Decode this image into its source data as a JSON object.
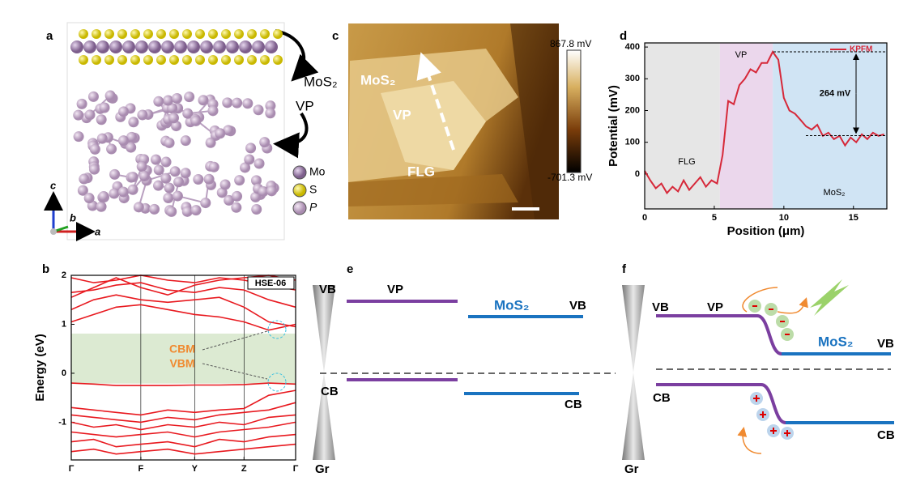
{
  "panel_a": {
    "label": "a",
    "layer_labels": [
      "MoS₂",
      "VP"
    ],
    "legend": [
      "Mo",
      "S",
      "P"
    ],
    "axes": [
      "c",
      "b",
      "a"
    ]
  },
  "chart_data": [
    {
      "type": "line",
      "panel_label": "b",
      "y_label": "Energy (eV)",
      "color": "#e8191f",
      "x": [
        0,
        0.1,
        0.2,
        0.31,
        0.43,
        0.55,
        0.66,
        0.77,
        0.88,
        1.0
      ],
      "series": [
        {
          "values": [
            1.05,
            1.2,
            1.35,
            1.4,
            1.3,
            1.2,
            1.15,
            1.05,
            0.88,
            1.0
          ]
        },
        {
          "values": [
            1.3,
            1.5,
            1.6,
            1.5,
            1.45,
            1.5,
            1.55,
            1.35,
            1.05,
            0.95
          ]
        },
        {
          "values": [
            1.65,
            1.7,
            1.8,
            1.85,
            1.7,
            1.65,
            1.75,
            1.7,
            1.5,
            1.35
          ]
        },
        {
          "values": [
            1.95,
            1.85,
            1.9,
            2.0,
            1.9,
            1.85,
            1.95,
            1.9,
            1.8,
            1.7
          ]
        },
        {
          "values": [
            1.55,
            1.75,
            1.95,
            1.75,
            1.6,
            1.8,
            1.9,
            1.95,
            2.0,
            1.9
          ]
        },
        {
          "values": [
            -0.2,
            -0.22,
            -0.25,
            -0.25,
            -0.25,
            -0.24,
            -0.24,
            -0.23,
            -0.2,
            -0.22
          ]
        },
        {
          "values": [
            -0.7,
            -0.75,
            -0.8,
            -0.85,
            -0.75,
            -0.8,
            -0.75,
            -0.72,
            -0.45,
            -0.35
          ]
        },
        {
          "values": [
            -0.85,
            -0.9,
            -0.95,
            -1.0,
            -0.9,
            -0.95,
            -0.85,
            -0.8,
            -0.75,
            -0.6
          ]
        },
        {
          "values": [
            -1.0,
            -1.1,
            -1.05,
            -1.15,
            -1.05,
            -1.1,
            -1.0,
            -1.05,
            -0.9,
            -0.85
          ]
        },
        {
          "values": [
            -1.2,
            -1.25,
            -1.3,
            -1.25,
            -1.2,
            -1.3,
            -1.2,
            -1.15,
            -1.1,
            -1.0
          ]
        },
        {
          "values": [
            -1.4,
            -1.35,
            -1.5,
            -1.45,
            -1.4,
            -1.5,
            -1.35,
            -1.4,
            -1.3,
            -1.25
          ]
        },
        {
          "values": [
            -1.6,
            -1.55,
            -1.65,
            -1.6,
            -1.55,
            -1.65,
            -1.6,
            -1.55,
            -1.5,
            -1.45
          ]
        }
      ],
      "xlim": [
        0,
        1.0
      ],
      "xticks": [
        {
          "value": 0,
          "label": "Γ"
        },
        {
          "value": 0.31,
          "label": "F"
        },
        {
          "value": 0.55,
          "label": "Y"
        },
        {
          "value": 0.77,
          "label": "Z"
        },
        {
          "value": 1.0,
          "label": "Γ"
        }
      ],
      "ylim": [
        -1.77,
        2
      ],
      "yticks": [
        2,
        1,
        0,
        -1
      ],
      "shaded_range": [
        -0.21,
        0.81
      ],
      "shade_color": "#dcead2",
      "annotations": [
        "HSE-06",
        "CBM",
        "VBM"
      ]
    },
    {
      "type": "line",
      "panel_label": "d",
      "x_label": "Position (μm)",
      "y_label": "Potential (mV)",
      "x": [
        0,
        0.4,
        0.8,
        1.2,
        1.6,
        2.0,
        2.4,
        2.8,
        3.2,
        3.6,
        4.0,
        4.4,
        4.8,
        5.2,
        5.6,
        6.0,
        6.4,
        6.8,
        7.2,
        7.6,
        8.0,
        8.4,
        8.8,
        9.2,
        9.6,
        10.0,
        10.4,
        10.8,
        11.2,
        11.6,
        12.0,
        12.4,
        12.8,
        13.2,
        13.6,
        14.0,
        14.4,
        14.8,
        15.2,
        15.6,
        16.0,
        16.4,
        16.8,
        17.2
      ],
      "series": [
        {
          "name": "KPFM",
          "color": "#d62839",
          "values": [
            10,
            -20,
            -45,
            -30,
            -60,
            -40,
            -55,
            -20,
            -50,
            -30,
            -10,
            -40,
            -20,
            -30,
            60,
            230,
            220,
            280,
            300,
            330,
            320,
            350,
            350,
            385,
            360,
            240,
            200,
            190,
            170,
            150,
            140,
            155,
            120,
            130,
            110,
            120,
            90,
            115,
            100,
            125,
            110,
            130,
            120,
            125
          ]
        }
      ],
      "xlim": [
        0,
        17.4
      ],
      "xticks": [
        0,
        5,
        10,
        15
      ],
      "ylim": [
        -110,
        413
      ],
      "yticks": [
        0,
        100,
        200,
        300,
        400
      ],
      "regions": [
        {
          "label": "FLG",
          "from": 0,
          "to": 5.4,
          "color": "#e6e6e6"
        },
        {
          "label": "VP",
          "from": 5.4,
          "to": 9.2,
          "color": "#ebd7ec"
        },
        {
          "label": "MoS₂",
          "from": 9.2,
          "to": 17.4,
          "color": "#d0e4f4"
        }
      ],
      "reference_lines": [
        385,
        121
      ],
      "annotation": "264 mV",
      "legend_position": "upper right"
    }
  ],
  "panel_c": {
    "label": "c",
    "colorbar": {
      "max_label": "867.8 mV",
      "min_label": "-701.3 mV"
    },
    "regions": [
      "MoS₂",
      "VP",
      "FLG"
    ]
  },
  "panel_e": {
    "label": "e",
    "vb_left": "VB",
    "vp": "VP",
    "mos2": "MoS₂",
    "vb_right": "VB",
    "cb_left": "CB",
    "cb_right": "CB",
    "gr": "Gr"
  },
  "panel_f": {
    "label": "f",
    "vb_left": "VB",
    "vp": "VP",
    "mos2": "MoS₂",
    "vb_right": "VB",
    "cb_left": "CB",
    "cb_right": "CB",
    "gr": "Gr"
  }
}
